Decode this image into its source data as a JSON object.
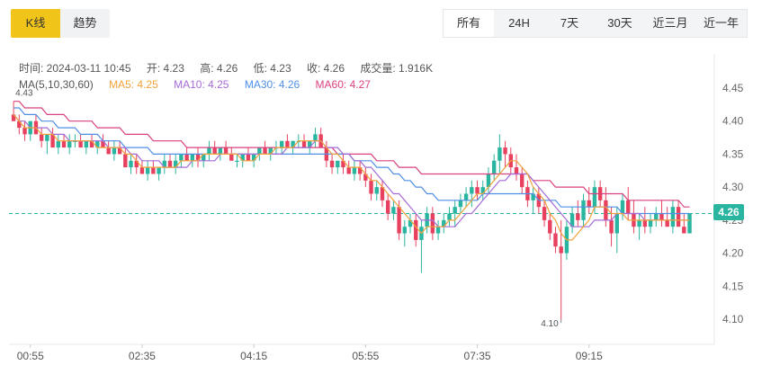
{
  "tabs": {
    "left": [
      {
        "label": "K线",
        "active": true
      },
      {
        "label": "趋势",
        "active": false
      }
    ],
    "right": [
      {
        "label": "所有",
        "active": true
      },
      {
        "label": "24H",
        "active": false
      },
      {
        "label": "7天",
        "active": false
      },
      {
        "label": "30天",
        "active": false
      },
      {
        "label": "近三月",
        "active": false
      },
      {
        "label": "近一年",
        "active": false
      }
    ]
  },
  "info": {
    "time": "时间:  2024-03-11 10:45",
    "open": "开:  4.23",
    "high": "高:  4.26",
    "low": "低:  4.23",
    "close": "收:  4.26",
    "volume": "成交量:  1.916K"
  },
  "ma": {
    "params": "MA(5,10,30,60)",
    "ma5": "MA5:  4.25",
    "ma10": "MA10:  4.25",
    "ma30": "MA30:  4.26",
    "ma60": "MA60:  4.27"
  },
  "colors": {
    "up": "#2ab5a0",
    "down": "#e8415f",
    "ma5": "#f0a23b",
    "ma10": "#a46bd6",
    "ma30": "#4f8fe6",
    "ma60": "#d9417f",
    "last_price_line": "#2ab5a0",
    "accent": "#f0c419"
  },
  "chart_data": {
    "type": "candlestick",
    "ylim": [
      4.06,
      4.48
    ],
    "y_ticks": [
      "4.45",
      "4.40",
      "4.35",
      "4.30",
      "4.25",
      "4.20",
      "4.15",
      "4.10"
    ],
    "y_tick_values": [
      4.45,
      4.4,
      4.35,
      4.3,
      4.25,
      4.2,
      4.15,
      4.1
    ],
    "x_ticks": [
      "00:55",
      "02:35",
      "04:15",
      "05:55",
      "07:35",
      "09:15"
    ],
    "x_tick_index": [
      3,
      23,
      43,
      63,
      83,
      103
    ],
    "last_price": 4.26,
    "last_price_label": "4.26",
    "high_mark": {
      "label": "4.43",
      "index": 0,
      "value": 4.43
    },
    "low_mark": {
      "label": "4.10",
      "index": 98,
      "value": 4.1
    },
    "ohlc": [
      [
        4.41,
        4.43,
        4.4,
        4.4
      ],
      [
        4.4,
        4.41,
        4.38,
        4.39
      ],
      [
        4.39,
        4.4,
        4.37,
        4.38
      ],
      [
        4.38,
        4.4,
        4.37,
        4.4
      ],
      [
        4.4,
        4.41,
        4.38,
        4.38
      ],
      [
        4.38,
        4.39,
        4.36,
        4.37
      ],
      [
        4.37,
        4.38,
        4.35,
        4.38
      ],
      [
        4.38,
        4.39,
        4.36,
        4.36
      ],
      [
        4.36,
        4.38,
        4.35,
        4.37
      ],
      [
        4.37,
        4.38,
        4.36,
        4.36
      ],
      [
        4.36,
        4.38,
        4.35,
        4.37
      ],
      [
        4.37,
        4.38,
        4.36,
        4.37
      ],
      [
        4.37,
        4.38,
        4.36,
        4.36
      ],
      [
        4.36,
        4.37,
        4.35,
        4.37
      ],
      [
        4.37,
        4.38,
        4.36,
        4.36
      ],
      [
        4.36,
        4.37,
        4.35,
        4.37
      ],
      [
        4.37,
        4.38,
        4.36,
        4.36
      ],
      [
        4.36,
        4.37,
        4.35,
        4.35
      ],
      [
        4.35,
        4.37,
        4.34,
        4.36
      ],
      [
        4.36,
        4.37,
        4.35,
        4.35
      ],
      [
        4.35,
        4.36,
        4.33,
        4.33
      ],
      [
        4.33,
        4.35,
        4.32,
        4.34
      ],
      [
        4.34,
        4.35,
        4.32,
        4.33
      ],
      [
        4.33,
        4.34,
        4.32,
        4.32
      ],
      [
        4.32,
        4.34,
        4.31,
        4.33
      ],
      [
        4.33,
        4.34,
        4.32,
        4.32
      ],
      [
        4.32,
        4.33,
        4.31,
        4.33
      ],
      [
        4.33,
        4.35,
        4.32,
        4.34
      ],
      [
        4.34,
        4.35,
        4.33,
        4.33
      ],
      [
        4.33,
        4.35,
        4.32,
        4.34
      ],
      [
        4.34,
        4.35,
        4.33,
        4.35
      ],
      [
        4.35,
        4.36,
        4.34,
        4.34
      ],
      [
        4.34,
        4.35,
        4.33,
        4.35
      ],
      [
        4.35,
        4.36,
        4.33,
        4.34
      ],
      [
        4.34,
        4.35,
        4.33,
        4.35
      ],
      [
        4.35,
        4.37,
        4.34,
        4.36
      ],
      [
        4.36,
        4.37,
        4.35,
        4.35
      ],
      [
        4.35,
        4.36,
        4.34,
        4.36
      ],
      [
        4.36,
        4.37,
        4.35,
        4.35
      ],
      [
        4.35,
        4.36,
        4.34,
        4.34
      ],
      [
        4.34,
        4.35,
        4.33,
        4.34
      ],
      [
        4.34,
        4.35,
        4.33,
        4.35
      ],
      [
        4.35,
        4.36,
        4.34,
        4.34
      ],
      [
        4.34,
        4.35,
        4.33,
        4.35
      ],
      [
        4.35,
        4.36,
        4.34,
        4.36
      ],
      [
        4.36,
        4.37,
        4.35,
        4.35
      ],
      [
        4.35,
        4.36,
        4.34,
        4.36
      ],
      [
        4.36,
        4.37,
        4.35,
        4.36
      ],
      [
        4.36,
        4.37,
        4.35,
        4.37
      ],
      [
        4.37,
        4.38,
        4.36,
        4.36
      ],
      [
        4.36,
        4.37,
        4.35,
        4.37
      ],
      [
        4.37,
        4.38,
        4.36,
        4.37
      ],
      [
        4.37,
        4.38,
        4.36,
        4.36
      ],
      [
        4.36,
        4.37,
        4.35,
        4.37
      ],
      [
        4.37,
        4.39,
        4.36,
        4.38
      ],
      [
        4.38,
        4.39,
        4.36,
        4.36
      ],
      [
        4.36,
        4.37,
        4.33,
        4.34
      ],
      [
        4.34,
        4.35,
        4.32,
        4.33
      ],
      [
        4.33,
        4.34,
        4.32,
        4.34
      ],
      [
        4.34,
        4.35,
        4.32,
        4.33
      ],
      [
        4.33,
        4.34,
        4.32,
        4.32
      ],
      [
        4.32,
        4.34,
        4.31,
        4.33
      ],
      [
        4.33,
        4.34,
        4.31,
        4.32
      ],
      [
        4.32,
        4.33,
        4.3,
        4.31
      ],
      [
        4.31,
        4.32,
        4.28,
        4.29
      ],
      [
        4.29,
        4.31,
        4.28,
        4.3
      ],
      [
        4.3,
        4.31,
        4.27,
        4.28
      ],
      [
        4.28,
        4.29,
        4.25,
        4.26
      ],
      [
        4.26,
        4.28,
        4.25,
        4.27
      ],
      [
        4.27,
        4.28,
        4.22,
        4.23
      ],
      [
        4.23,
        4.25,
        4.21,
        4.24
      ],
      [
        4.24,
        4.26,
        4.23,
        4.25
      ],
      [
        4.25,
        4.26,
        4.21,
        4.22
      ],
      [
        4.22,
        4.25,
        4.17,
        4.24
      ],
      [
        4.24,
        4.27,
        4.23,
        4.26
      ],
      [
        4.26,
        4.27,
        4.22,
        4.23
      ],
      [
        4.23,
        4.25,
        4.22,
        4.24
      ],
      [
        4.24,
        4.26,
        4.23,
        4.25
      ],
      [
        4.25,
        4.27,
        4.24,
        4.26
      ],
      [
        4.26,
        4.28,
        4.24,
        4.27
      ],
      [
        4.27,
        4.29,
        4.26,
        4.28
      ],
      [
        4.28,
        4.3,
        4.27,
        4.29
      ],
      [
        4.29,
        4.31,
        4.27,
        4.3
      ],
      [
        4.3,
        4.31,
        4.28,
        4.29
      ],
      [
        4.29,
        4.31,
        4.28,
        4.3
      ],
      [
        4.3,
        4.33,
        4.29,
        4.32
      ],
      [
        4.32,
        4.35,
        4.31,
        4.34
      ],
      [
        4.34,
        4.38,
        4.32,
        4.36
      ],
      [
        4.36,
        4.37,
        4.33,
        4.35
      ],
      [
        4.35,
        4.36,
        4.32,
        4.33
      ],
      [
        4.33,
        4.35,
        4.31,
        4.32
      ],
      [
        4.32,
        4.33,
        4.29,
        4.3
      ],
      [
        4.3,
        4.31,
        4.27,
        4.28
      ],
      [
        4.28,
        4.3,
        4.26,
        4.29
      ],
      [
        4.29,
        4.3,
        4.26,
        4.27
      ],
      [
        4.27,
        4.28,
        4.24,
        4.25
      ],
      [
        4.25,
        4.26,
        4.22,
        4.23
      ],
      [
        4.23,
        4.24,
        4.2,
        4.21
      ],
      [
        4.21,
        4.25,
        4.1,
        4.2
      ],
      [
        4.2,
        4.25,
        4.19,
        4.24
      ],
      [
        4.24,
        4.27,
        4.23,
        4.26
      ],
      [
        4.26,
        4.28,
        4.24,
        4.25
      ],
      [
        4.25,
        4.29,
        4.24,
        4.28
      ],
      [
        4.28,
        4.3,
        4.26,
        4.27
      ],
      [
        4.27,
        4.31,
        4.26,
        4.3
      ],
      [
        4.3,
        4.31,
        4.27,
        4.28
      ],
      [
        4.28,
        4.3,
        4.24,
        4.25
      ],
      [
        4.25,
        4.27,
        4.21,
        4.23
      ],
      [
        4.23,
        4.27,
        4.2,
        4.26
      ],
      [
        4.26,
        4.29,
        4.25,
        4.28
      ],
      [
        4.28,
        4.3,
        4.25,
        4.26
      ],
      [
        4.26,
        4.28,
        4.23,
        4.24
      ],
      [
        4.24,
        4.26,
        4.22,
        4.25
      ],
      [
        4.25,
        4.27,
        4.23,
        4.24
      ],
      [
        4.24,
        4.26,
        4.23,
        4.25
      ],
      [
        4.25,
        4.27,
        4.24,
        4.26
      ],
      [
        4.26,
        4.28,
        4.24,
        4.25
      ],
      [
        4.25,
        4.27,
        4.24,
        4.24
      ],
      [
        4.24,
        4.28,
        4.23,
        4.27
      ],
      [
        4.27,
        4.28,
        4.24,
        4.24
      ],
      [
        4.24,
        4.26,
        4.23,
        4.23
      ],
      [
        4.23,
        4.26,
        4.23,
        4.26
      ]
    ],
    "ma5_values": [
      4.41,
      4.4,
      4.39,
      4.39,
      4.39,
      4.38,
      4.38,
      4.38,
      4.37,
      4.37,
      4.37,
      4.37,
      4.37,
      4.37,
      4.37,
      4.36,
      4.36,
      4.36,
      4.36,
      4.36,
      4.35,
      4.35,
      4.34,
      4.33,
      4.33,
      4.33,
      4.33,
      4.33,
      4.33,
      4.33,
      4.34,
      4.34,
      4.34,
      4.34,
      4.35,
      4.35,
      4.35,
      4.35,
      4.35,
      4.35,
      4.35,
      4.34,
      4.34,
      4.34,
      4.35,
      4.35,
      4.35,
      4.36,
      4.36,
      4.36,
      4.36,
      4.37,
      4.37,
      4.37,
      4.37,
      4.37,
      4.36,
      4.35,
      4.35,
      4.34,
      4.33,
      4.33,
      4.33,
      4.32,
      4.31,
      4.31,
      4.3,
      4.29,
      4.28,
      4.27,
      4.26,
      4.25,
      4.24,
      4.23,
      4.24,
      4.24,
      4.24,
      4.24,
      4.25,
      4.25,
      4.26,
      4.27,
      4.28,
      4.29,
      4.29,
      4.3,
      4.31,
      4.32,
      4.33,
      4.34,
      4.34,
      4.33,
      4.32,
      4.3,
      4.29,
      4.28,
      4.26,
      4.25,
      4.23,
      4.22,
      4.22,
      4.23,
      4.24,
      4.25,
      4.27,
      4.27,
      4.27,
      4.26,
      4.26,
      4.26,
      4.25,
      4.25,
      4.25,
      4.25,
      4.25,
      4.25,
      4.25,
      4.25,
      4.25,
      4.25,
      4.25,
      4.25
    ],
    "ma10_values": [
      4.41,
      4.4,
      4.4,
      4.39,
      4.39,
      4.39,
      4.39,
      4.38,
      4.38,
      4.38,
      4.37,
      4.37,
      4.37,
      4.37,
      4.37,
      4.37,
      4.37,
      4.36,
      4.36,
      4.36,
      4.36,
      4.35,
      4.35,
      4.34,
      4.34,
      4.34,
      4.34,
      4.33,
      4.33,
      4.33,
      4.33,
      4.33,
      4.34,
      4.34,
      4.34,
      4.34,
      4.34,
      4.35,
      4.35,
      4.35,
      4.35,
      4.35,
      4.35,
      4.35,
      4.35,
      4.35,
      4.35,
      4.35,
      4.35,
      4.36,
      4.36,
      4.36,
      4.36,
      4.36,
      4.37,
      4.37,
      4.36,
      4.36,
      4.36,
      4.35,
      4.35,
      4.34,
      4.34,
      4.33,
      4.33,
      4.32,
      4.31,
      4.3,
      4.29,
      4.29,
      4.28,
      4.27,
      4.26,
      4.25,
      4.25,
      4.25,
      4.24,
      4.24,
      4.24,
      4.24,
      4.25,
      4.26,
      4.26,
      4.27,
      4.28,
      4.29,
      4.3,
      4.31,
      4.31,
      4.32,
      4.32,
      4.32,
      4.32,
      4.31,
      4.3,
      4.29,
      4.28,
      4.27,
      4.26,
      4.25,
      4.24,
      4.24,
      4.24,
      4.24,
      4.25,
      4.25,
      4.25,
      4.25,
      4.26,
      4.26,
      4.26,
      4.26,
      4.26,
      4.25,
      4.25,
      4.25,
      4.25,
      4.25,
      4.25,
      4.25,
      4.25,
      4.25
    ],
    "ma30_values": [
      4.42,
      4.42,
      4.41,
      4.41,
      4.41,
      4.4,
      4.4,
      4.4,
      4.39,
      4.39,
      4.39,
      4.39,
      4.38,
      4.38,
      4.38,
      4.38,
      4.37,
      4.37,
      4.37,
      4.37,
      4.36,
      4.36,
      4.36,
      4.36,
      4.36,
      4.35,
      4.35,
      4.35,
      4.35,
      4.35,
      4.35,
      4.35,
      4.35,
      4.35,
      4.35,
      4.35,
      4.35,
      4.35,
      4.35,
      4.35,
      4.35,
      4.35,
      4.35,
      4.35,
      4.35,
      4.35,
      4.35,
      4.35,
      4.35,
      4.35,
      4.35,
      4.35,
      4.35,
      4.35,
      4.35,
      4.35,
      4.35,
      4.35,
      4.35,
      4.35,
      4.35,
      4.34,
      4.34,
      4.34,
      4.34,
      4.33,
      4.33,
      4.33,
      4.32,
      4.32,
      4.31,
      4.31,
      4.3,
      4.3,
      4.29,
      4.29,
      4.28,
      4.28,
      4.28,
      4.28,
      4.28,
      4.28,
      4.28,
      4.28,
      4.29,
      4.29,
      4.29,
      4.29,
      4.29,
      4.29,
      4.29,
      4.29,
      4.29,
      4.29,
      4.28,
      4.28,
      4.28,
      4.28,
      4.27,
      4.27,
      4.27,
      4.27,
      4.27,
      4.27,
      4.27,
      4.27,
      4.27,
      4.27,
      4.27,
      4.26,
      4.26,
      4.26,
      4.26,
      4.26,
      4.26,
      4.26,
      4.26,
      4.26,
      4.26,
      4.26,
      4.26,
      4.26
    ],
    "ma60_values": [
      4.43,
      4.43,
      4.42,
      4.42,
      4.42,
      4.42,
      4.41,
      4.41,
      4.41,
      4.41,
      4.4,
      4.4,
      4.4,
      4.4,
      4.4,
      4.39,
      4.39,
      4.39,
      4.39,
      4.39,
      4.38,
      4.38,
      4.38,
      4.38,
      4.38,
      4.37,
      4.37,
      4.37,
      4.37,
      4.37,
      4.37,
      4.36,
      4.36,
      4.36,
      4.36,
      4.36,
      4.36,
      4.36,
      4.36,
      4.36,
      4.36,
      4.36,
      4.36,
      4.36,
      4.36,
      4.36,
      4.36,
      4.36,
      4.36,
      4.36,
      4.36,
      4.36,
      4.36,
      4.36,
      4.36,
      4.36,
      4.36,
      4.36,
      4.35,
      4.35,
      4.35,
      4.35,
      4.35,
      4.35,
      4.35,
      4.34,
      4.34,
      4.34,
      4.34,
      4.33,
      4.33,
      4.33,
      4.33,
      4.32,
      4.32,
      4.32,
      4.32,
      4.32,
      4.32,
      4.32,
      4.32,
      4.32,
      4.32,
      4.32,
      4.32,
      4.32,
      4.32,
      4.32,
      4.32,
      4.32,
      4.32,
      4.32,
      4.32,
      4.31,
      4.31,
      4.31,
      4.31,
      4.3,
      4.3,
      4.3,
      4.3,
      4.3,
      4.3,
      4.29,
      4.29,
      4.29,
      4.29,
      4.29,
      4.29,
      4.29,
      4.28,
      4.28,
      4.28,
      4.28,
      4.28,
      4.28,
      4.28,
      4.28,
      4.28,
      4.28,
      4.27,
      4.27
    ]
  }
}
